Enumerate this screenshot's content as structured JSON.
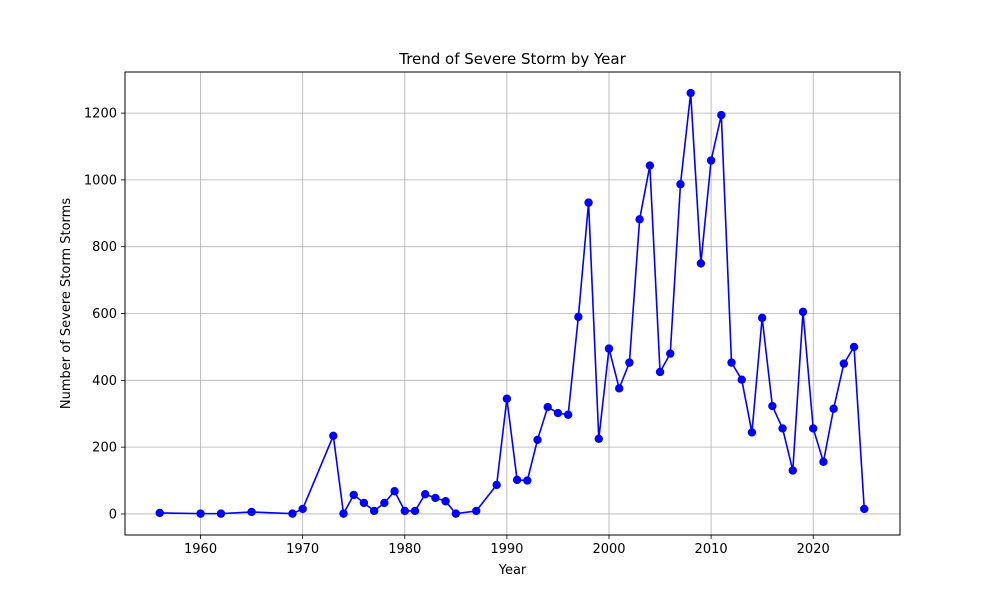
{
  "chart_data": {
    "type": "line",
    "title": "Trend of Severe Storm by Year",
    "xlabel": "Year",
    "ylabel": "Number of Severe Storm Storms",
    "xlim": [
      1952.6,
      2028.5
    ],
    "ylim": [
      -63,
      1323
    ],
    "xticks": [
      1960,
      1970,
      1980,
      1990,
      2000,
      2010,
      2020
    ],
    "yticks": [
      0,
      200,
      400,
      600,
      800,
      1000,
      1200
    ],
    "grid": true,
    "marker": "circle",
    "series": [
      {
        "color": "#0000ff",
        "x": [
          1956,
          1960,
          1962,
          1965,
          1969,
          1970,
          1973,
          1974,
          1975,
          1976,
          1977,
          1978,
          1979,
          1980,
          1981,
          1982,
          1983,
          1984,
          1985,
          1987,
          1989,
          1990,
          1991,
          1992,
          1993,
          1994,
          1995,
          1996,
          1997,
          1998,
          1999,
          2000,
          2001,
          2002,
          2003,
          2004,
          2005,
          2006,
          2007,
          2008,
          2009,
          2010,
          2011,
          2012,
          2013,
          2014,
          2015,
          2016,
          2017,
          2018,
          2019,
          2020,
          2021,
          2022,
          2023,
          2024,
          2025
        ],
        "y": [
          3,
          1,
          1,
          6,
          1,
          15,
          234,
          1,
          57,
          33,
          9,
          33,
          68,
          9,
          9,
          59,
          48,
          38,
          1,
          9,
          87,
          345,
          102,
          100,
          222,
          320,
          302,
          297,
          590,
          932,
          225,
          495,
          376,
          453,
          882,
          1043,
          425,
          480,
          987,
          1260,
          750,
          1058,
          1194,
          453,
          402,
          244,
          587,
          323,
          256,
          130,
          605,
          256,
          156,
          315,
          450,
          500,
          15
        ]
      }
    ]
  }
}
